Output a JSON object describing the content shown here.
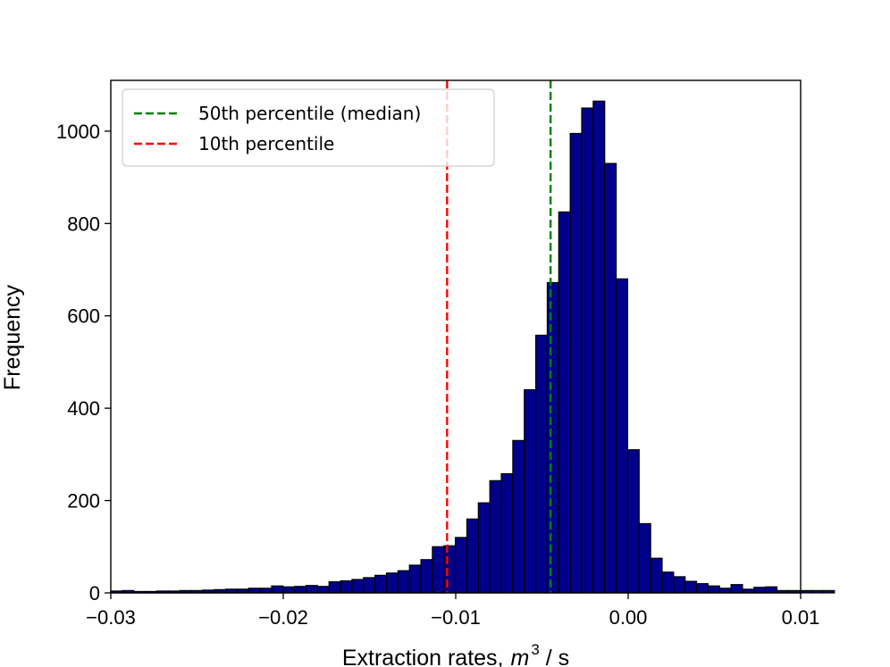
{
  "chart_data": {
    "type": "bar",
    "title": "",
    "xlabel": "Extraction rates,",
    "xlabel_math": "m",
    "xlabel_superscript": "3",
    "xlabel_unit": " / s",
    "ylabel": "Frequency",
    "xlim": [
      -0.03,
      0.01
    ],
    "ylim": [
      0,
      1110
    ],
    "xticks": [
      -0.03,
      -0.02,
      -0.01,
      0.0,
      0.01
    ],
    "xtick_labels": [
      "−0.03",
      "−0.02",
      "−0.01",
      "0.00",
      "0.01"
    ],
    "yticks": [
      0,
      200,
      400,
      600,
      800,
      1000
    ],
    "ytick_labels": [
      "0",
      "200",
      "400",
      "600",
      "800",
      "1000"
    ],
    "bin_start": -0.03,
    "bin_width": 0.000666,
    "values": [
      4,
      5,
      3,
      3,
      4,
      4,
      5,
      5,
      6,
      7,
      8,
      8,
      10,
      10,
      15,
      13,
      14,
      16,
      14,
      24,
      26,
      29,
      33,
      38,
      43,
      48,
      60,
      72,
      100,
      102,
      120,
      160,
      195,
      243,
      258,
      330,
      440,
      558,
      672,
      825,
      995,
      1050,
      1065,
      930,
      680,
      310,
      150,
      75,
      45,
      35,
      25,
      20,
      15,
      10,
      18,
      8,
      12,
      13,
      5,
      5,
      5,
      5,
      5
    ],
    "bar_color": "#00008b",
    "edge_color": "#000000",
    "vlines": [
      {
        "name": "50th percentile (median)",
        "x": -0.0045,
        "color": "#008000"
      },
      {
        "name": "10th percentile",
        "x": -0.0105,
        "color": "#ff0000"
      }
    ],
    "legend_position": "upper-left",
    "grid": false
  }
}
